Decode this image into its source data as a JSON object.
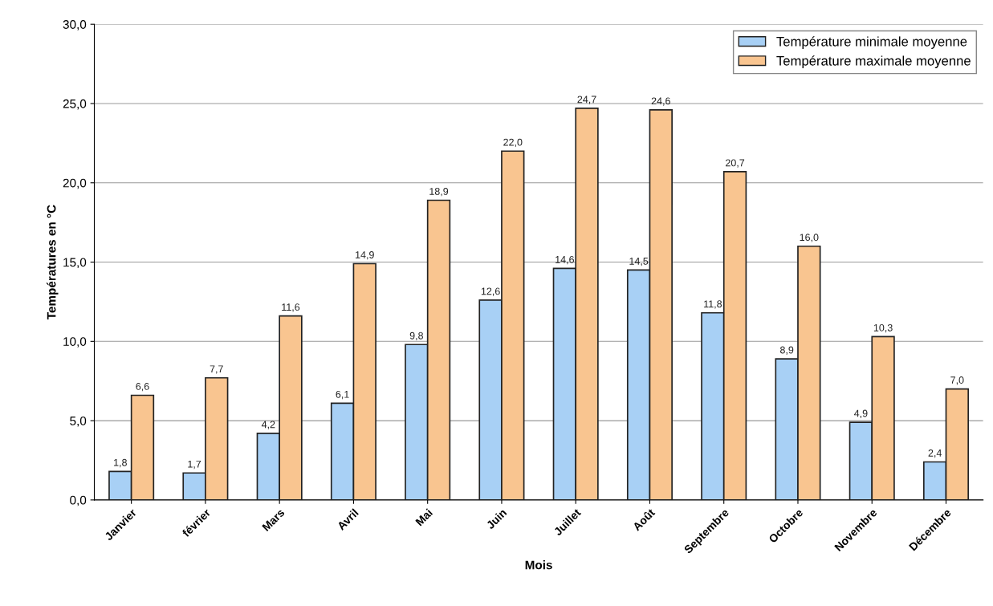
{
  "chart_data": {
    "type": "bar",
    "xlabel": "Mois",
    "ylabel": "Températures en °C",
    "categories": [
      "Janvier",
      "février",
      "Mars",
      "Avril",
      "Mai",
      "Juin",
      "Juillet",
      "Août",
      "Septembre",
      "Octobre",
      "Novembre",
      "Décembre"
    ],
    "series": [
      {
        "name": "Température minimale moyenne",
        "color": "#a8d0f5",
        "values": [
          1.8,
          1.7,
          4.2,
          6.1,
          9.8,
          12.6,
          14.6,
          14.5,
          11.8,
          8.9,
          4.9,
          2.4
        ],
        "value_labels": [
          "1,8",
          "1,7",
          "4,2",
          "6,1",
          "9,8",
          "12,6",
          "14,6",
          "14,5",
          "11,8",
          "8,9",
          "4,9",
          "2,4"
        ]
      },
      {
        "name": "Température maximale moyenne",
        "color": "#f9c590",
        "values": [
          6.6,
          7.7,
          11.6,
          14.9,
          18.9,
          22.0,
          24.7,
          24.6,
          20.7,
          16.0,
          10.3,
          7.0
        ],
        "value_labels": [
          "6,6",
          "7,7",
          "11,6",
          "14,9",
          "18,9",
          "22,0",
          "24,7",
          "24,6",
          "20,7",
          "16,0",
          "10,3",
          "7,0"
        ]
      }
    ],
    "ylim": [
      0,
      30
    ],
    "yticks": [
      {
        "value": 0,
        "label": "0,0"
      },
      {
        "value": 5,
        "label": "5,0"
      },
      {
        "value": 10,
        "label": "10,0"
      },
      {
        "value": 15,
        "label": "15,0"
      },
      {
        "value": 20,
        "label": "20,0"
      },
      {
        "value": 25,
        "label": "25,0"
      },
      {
        "value": 30,
        "label": "30,0"
      }
    ],
    "grid": "y",
    "legend": "top right"
  }
}
